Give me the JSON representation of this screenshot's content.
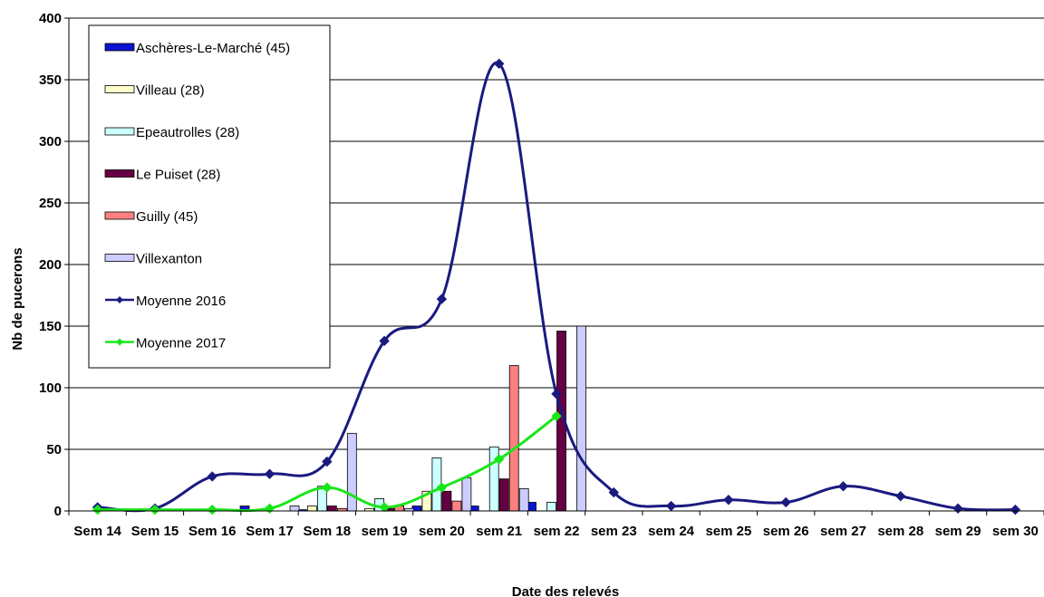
{
  "chart_data": {
    "type": "bar",
    "title": "",
    "xlabel": "Date des relevés",
    "ylabel": "Nb de pucerons",
    "ylim": [
      0,
      400
    ],
    "yticks": [
      0,
      50,
      100,
      150,
      200,
      250,
      300,
      350,
      400
    ],
    "grid": true,
    "legend_position": "top-left",
    "categories": [
      "Sem  14",
      "Sem 15",
      "Sem 16",
      "Sem  17",
      "Sem 18",
      "sem 19",
      "sem 20",
      "sem 21",
      "sem 22",
      "sem 23",
      "sem 24",
      "sem 25",
      "sem 26",
      "sem 27",
      "sem 28",
      "sem 29",
      "sem 30"
    ],
    "series": [
      {
        "name": "Aschères-Le-Marché (45)",
        "kind": "bar",
        "color": "#0a14d2",
        "values": [
          0,
          0,
          0,
          4,
          1,
          0,
          4,
          4,
          7,
          0,
          0,
          0,
          0,
          0,
          0,
          0,
          0
        ]
      },
      {
        "name": "Villeau (28)",
        "kind": "bar",
        "color": "#ffffcc",
        "values": [
          0,
          0,
          0,
          0,
          4,
          2,
          16,
          0,
          0,
          0,
          0,
          0,
          0,
          0,
          0,
          0,
          0
        ]
      },
      {
        "name": "Epeautrolles (28)",
        "kind": "bar",
        "color": "#ccffff",
        "values": [
          0,
          0,
          0,
          0,
          20,
          10,
          43,
          52,
          7,
          0,
          0,
          0,
          0,
          0,
          0,
          0,
          0
        ]
      },
      {
        "name": "Le Puiset (28)",
        "kind": "bar",
        "color": "#660044",
        "values": [
          0,
          0,
          0,
          0,
          4,
          2,
          16,
          26,
          146,
          0,
          0,
          0,
          0,
          0,
          0,
          0,
          0
        ]
      },
      {
        "name": "Guilly (45)",
        "kind": "bar",
        "color": "#ff8080",
        "values": [
          0,
          0,
          0,
          0,
          2,
          4,
          8,
          118,
          0,
          0,
          0,
          0,
          0,
          0,
          0,
          0,
          0
        ]
      },
      {
        "name": "Villexanton",
        "kind": "bar",
        "color": "#ccccff",
        "values": [
          0,
          0,
          0,
          4,
          63,
          2,
          27,
          18,
          150,
          0,
          0,
          0,
          0,
          0,
          0,
          0,
          0
        ]
      },
      {
        "name": "Moyenne 2016",
        "kind": "line",
        "color": "#1a1a80",
        "values": [
          3,
          2,
          28,
          30,
          40,
          138,
          172,
          363,
          95,
          15,
          4,
          9,
          7,
          20,
          12,
          2,
          1
        ]
      },
      {
        "name": "Moyenne 2017",
        "kind": "line",
        "color": "#19e619",
        "values": [
          1,
          1,
          1,
          2,
          19,
          3,
          19,
          42,
          77,
          null,
          null,
          null,
          null,
          null,
          null,
          null,
          null
        ]
      }
    ]
  }
}
